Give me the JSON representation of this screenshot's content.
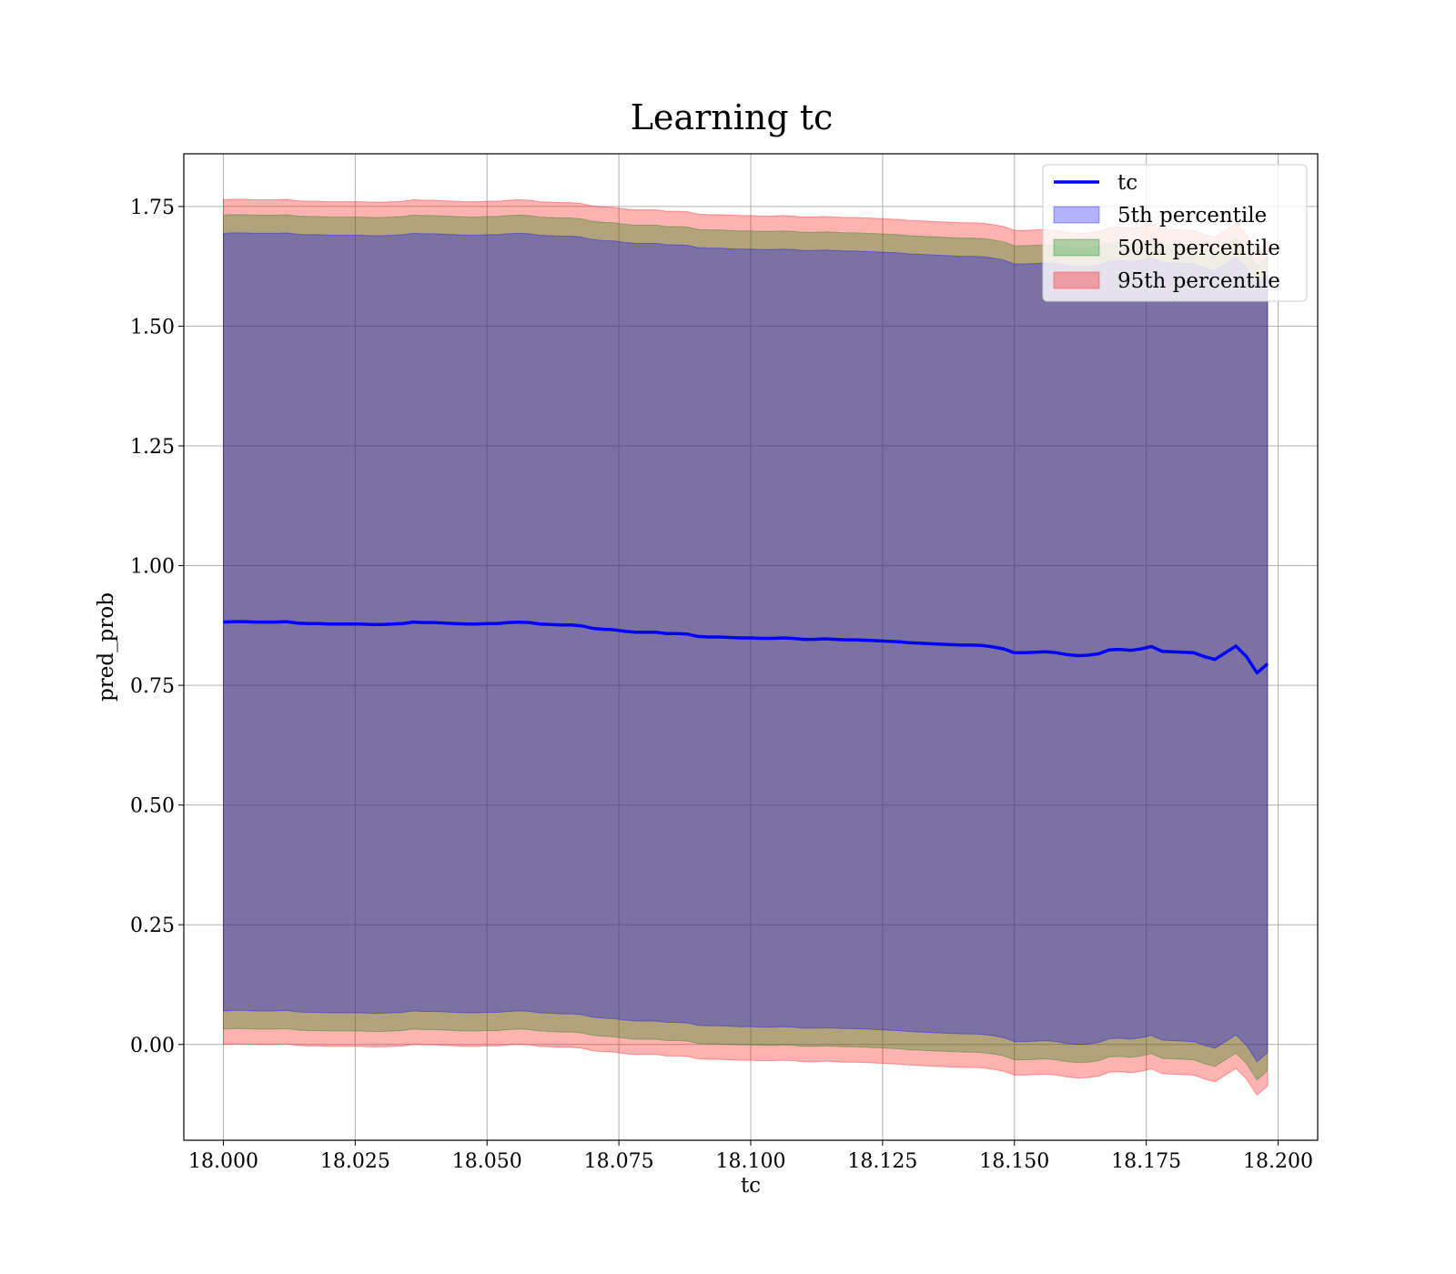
{
  "chart_data": {
    "type": "line",
    "title": "Learning tc",
    "xlabel": "tc",
    "ylabel": "pred_prob",
    "xlim": [
      17.9925,
      18.2075
    ],
    "ylim": [
      -0.2,
      1.86
    ],
    "grid": true,
    "legend_position": "top-right",
    "x_ticks": [
      "18.000",
      "18.025",
      "18.050",
      "18.075",
      "18.100",
      "18.125",
      "18.150",
      "18.175",
      "18.200"
    ],
    "y_ticks": [
      "0.00",
      "0.25",
      "0.50",
      "0.75",
      "1.00",
      "1.25",
      "1.50",
      "1.75"
    ],
    "x": [
      18.0,
      18.002,
      18.004,
      18.006,
      18.008,
      18.01,
      18.012,
      18.014,
      18.016,
      18.018,
      18.02,
      18.022,
      18.024,
      18.026,
      18.028,
      18.03,
      18.032,
      18.034,
      18.036,
      18.038,
      18.04,
      18.042,
      18.044,
      18.046,
      18.048,
      18.05,
      18.052,
      18.054,
      18.056,
      18.058,
      18.06,
      18.062,
      18.064,
      18.066,
      18.068,
      18.07,
      18.072,
      18.074,
      18.076,
      18.078,
      18.08,
      18.082,
      18.084,
      18.086,
      18.088,
      18.09,
      18.092,
      18.094,
      18.096,
      18.098,
      18.1,
      18.102,
      18.104,
      18.106,
      18.108,
      18.11,
      18.112,
      18.114,
      18.116,
      18.118,
      18.12,
      18.122,
      18.124,
      18.126,
      18.128,
      18.13,
      18.132,
      18.134,
      18.136,
      18.138,
      18.14,
      18.142,
      18.144,
      18.146,
      18.148,
      18.15,
      18.152,
      18.154,
      18.156,
      18.158,
      18.16,
      18.162,
      18.164,
      18.166,
      18.168,
      18.17,
      18.172,
      18.174,
      18.176,
      18.178,
      18.18,
      18.182,
      18.184,
      18.186,
      18.188,
      18.19,
      18.192,
      18.194,
      18.196,
      18.198
    ],
    "series": [
      {
        "name": "tc",
        "color": "#0000ff",
        "values": [
          0.882,
          0.883,
          0.883,
          0.882,
          0.882,
          0.882,
          0.883,
          0.88,
          0.879,
          0.879,
          0.878,
          0.878,
          0.878,
          0.878,
          0.877,
          0.877,
          0.878,
          0.879,
          0.882,
          0.881,
          0.881,
          0.88,
          0.879,
          0.878,
          0.878,
          0.879,
          0.879,
          0.881,
          0.882,
          0.881,
          0.878,
          0.877,
          0.876,
          0.876,
          0.874,
          0.869,
          0.867,
          0.866,
          0.863,
          0.861,
          0.861,
          0.861,
          0.858,
          0.858,
          0.857,
          0.852,
          0.851,
          0.851,
          0.85,
          0.849,
          0.849,
          0.848,
          0.848,
          0.849,
          0.848,
          0.846,
          0.846,
          0.847,
          0.846,
          0.845,
          0.845,
          0.844,
          0.843,
          0.842,
          0.841,
          0.839,
          0.838,
          0.837,
          0.836,
          0.835,
          0.834,
          0.834,
          0.833,
          0.83,
          0.826,
          0.818,
          0.818,
          0.819,
          0.82,
          0.818,
          0.814,
          0.812,
          0.813,
          0.816,
          0.824,
          0.825,
          0.823,
          0.826,
          0.831,
          0.821,
          0.82,
          0.819,
          0.818,
          0.81,
          0.804,
          0.818,
          0.832,
          0.81,
          0.776,
          0.795
        ]
      }
    ],
    "bands": [
      {
        "name": "5th percentile",
        "color": "#0000ff",
        "offset": 0.812
      },
      {
        "name": "50th percentile",
        "color": "#008000",
        "offset": 0.85
      },
      {
        "name": "95th percentile",
        "color": "#ff0000",
        "offset": 0.882
      }
    ]
  }
}
